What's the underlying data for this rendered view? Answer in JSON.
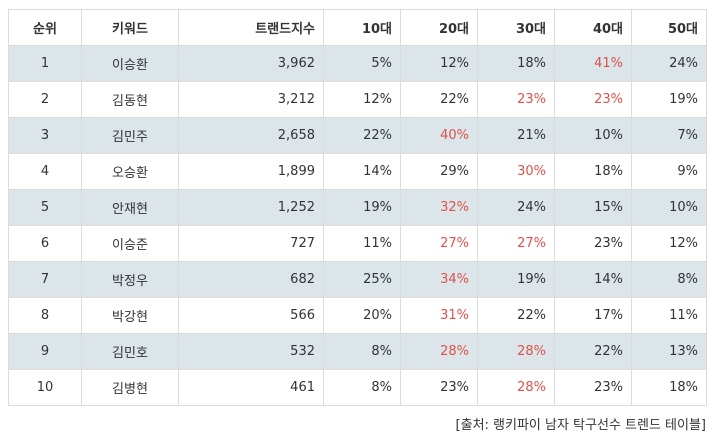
{
  "table": {
    "headers": [
      "순위",
      "키워드",
      "트랜드지수",
      "10대",
      "20대",
      "30대",
      "40대",
      "50대"
    ],
    "highlight_color": "#e0524a",
    "shaded_row_color": "#dbe5ea",
    "rows": [
      {
        "cells": [
          "1",
          "이승환",
          "3,962",
          "5%",
          "12%",
          "18%",
          "41%",
          "24%"
        ],
        "highlight": [
          6
        ]
      },
      {
        "cells": [
          "2",
          "김동현",
          "3,212",
          "12%",
          "22%",
          "23%",
          "23%",
          "19%"
        ],
        "highlight": [
          5,
          6
        ]
      },
      {
        "cells": [
          "3",
          "김민주",
          "2,658",
          "22%",
          "40%",
          "21%",
          "10%",
          "7%"
        ],
        "highlight": [
          4
        ]
      },
      {
        "cells": [
          "4",
          "오승환",
          "1,899",
          "14%",
          "29%",
          "30%",
          "18%",
          "9%"
        ],
        "highlight": [
          5
        ]
      },
      {
        "cells": [
          "5",
          "안재현",
          "1,252",
          "19%",
          "32%",
          "24%",
          "15%",
          "10%"
        ],
        "highlight": [
          4
        ]
      },
      {
        "cells": [
          "6",
          "이승준",
          "727",
          "11%",
          "27%",
          "27%",
          "23%",
          "12%"
        ],
        "highlight": [
          4,
          5
        ]
      },
      {
        "cells": [
          "7",
          "박정우",
          "682",
          "25%",
          "34%",
          "19%",
          "14%",
          "8%"
        ],
        "highlight": [
          4
        ]
      },
      {
        "cells": [
          "8",
          "박강현",
          "566",
          "20%",
          "31%",
          "22%",
          "17%",
          "11%"
        ],
        "highlight": [
          4
        ]
      },
      {
        "cells": [
          "9",
          "김민호",
          "532",
          "8%",
          "28%",
          "28%",
          "22%",
          "13%"
        ],
        "highlight": [
          4,
          5
        ]
      },
      {
        "cells": [
          "10",
          "김병현",
          "461",
          "8%",
          "23%",
          "28%",
          "23%",
          "18%"
        ],
        "highlight": [
          5
        ]
      }
    ]
  },
  "caption": "[출처: 랭키파이 남자 탁구선수 트렌드 테이블]"
}
